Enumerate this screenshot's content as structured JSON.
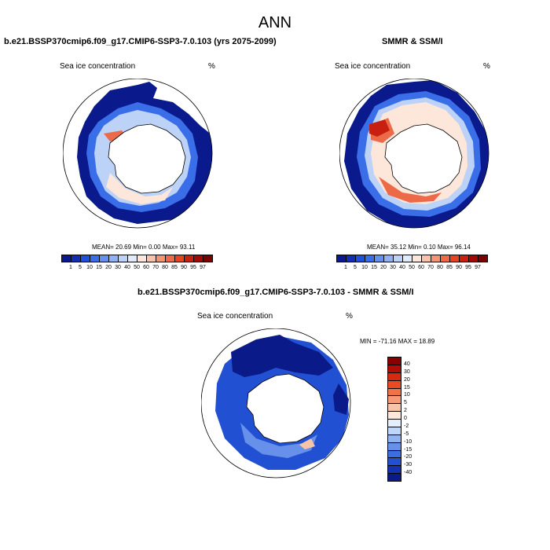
{
  "main_title": "ANN",
  "panels": {
    "left": {
      "title": "b.e21.BSSP370cmip6.f09_g17.CMIP6-SSP3-7.0.103 (yrs 2075-2099)",
      "variable": "Sea ice concentration",
      "units": "%",
      "stats": "MEAN=  20.69  Min=   0.00  Max=  93.11"
    },
    "right": {
      "title": "SMMR & SSM/I",
      "variable": "Sea ice concentration",
      "units": "%",
      "stats": "MEAN=  35.12  Min=   0.10  Max=  96.14"
    },
    "diff": {
      "title": "b.e21.BSSP370cmip6.f09_g17.CMIP6-SSP3-7.0.103 - SMMR & SSM/I",
      "variable": "Sea ice concentration",
      "units": "%",
      "stats": "MIN = -71.16 MAX =  18.89"
    }
  },
  "colorbar_conc": {
    "labels": [
      "1",
      "5",
      "10",
      "15",
      "20",
      "30",
      "40",
      "50",
      "60",
      "70",
      "80",
      "85",
      "90",
      "95",
      "97"
    ],
    "colors": [
      "#0a1a8c",
      "#1030b0",
      "#2050d8",
      "#3a6ee8",
      "#6490ee",
      "#90b2f2",
      "#bcd2f6",
      "#e0ecfb",
      "#fde6da",
      "#f8c3a8",
      "#f29574",
      "#ec6a48",
      "#e2451f",
      "#c82010",
      "#a00a06",
      "#7a0000"
    ]
  },
  "colorbar_diff": {
    "labels": [
      "40",
      "30",
      "20",
      "15",
      "10",
      "5",
      "2",
      "0",
      "-2",
      "-5",
      "-10",
      "-15",
      "-20",
      "-30",
      "-40"
    ],
    "colors": [
      "#8a0000",
      "#b20c06",
      "#d62a10",
      "#ea4c22",
      "#f27246",
      "#f59a76",
      "#f8c4a8",
      "#fde8dc",
      "#e4eefc",
      "#c0d6f6",
      "#90b4f0",
      "#6690ea",
      "#3c6ee2",
      "#2250d2",
      "#1232b0",
      "#0a1a88"
    ]
  },
  "colors": {
    "deep_blue": "#0a1a8c",
    "mid_blue": "#3a6ee8",
    "light_blue": "#bcd2f6",
    "pale": "#fde6da",
    "orange": "#ec6a48",
    "red": "#c82010"
  }
}
